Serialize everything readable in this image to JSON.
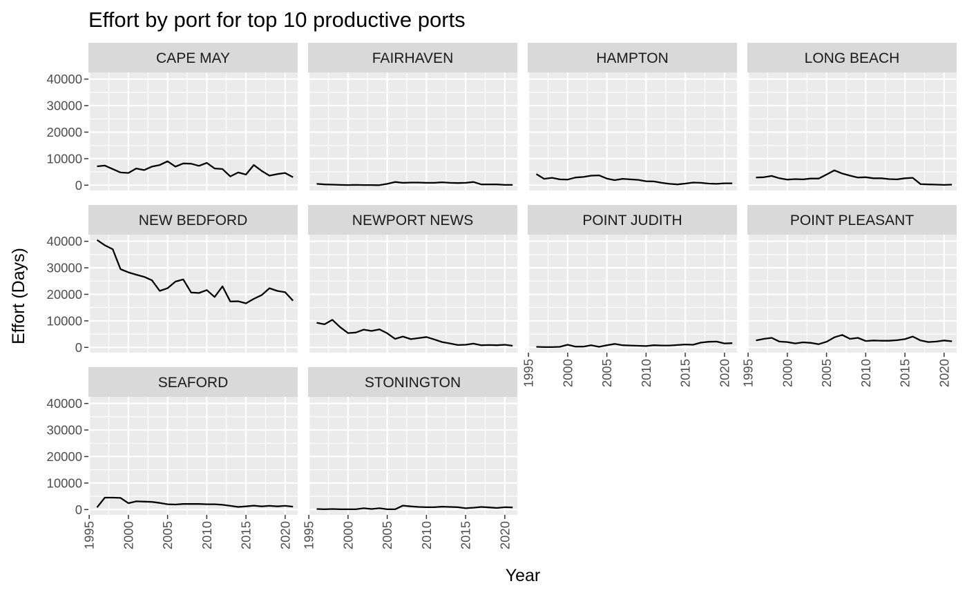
{
  "chart_data": {
    "type": "line",
    "title": "Effort by port for top 10 productive ports",
    "xlabel": "Year",
    "ylabel": "Effort (Days)",
    "facet_layout": "wrap 4 columns",
    "xlim": [
      1994.9,
      2021.6
    ],
    "ylim": [
      -2000,
      42500
    ],
    "x_ticks": [
      1995,
      2000,
      2005,
      2010,
      2015,
      2020
    ],
    "y_ticks": [
      0,
      10000,
      20000,
      30000,
      40000
    ],
    "x_tick_labels": [
      "1995",
      "2000",
      "2005",
      "2010",
      "2015",
      "2020"
    ],
    "y_tick_labels": [
      "0",
      "10000",
      "20000",
      "30000",
      "40000"
    ],
    "grid": true,
    "panel_background": "#ebebeb",
    "strip_background": "#d9d9d9",
    "line_color": "#000000",
    "x": [
      1996,
      1997,
      1998,
      1999,
      2000,
      2001,
      2002,
      2003,
      2004,
      2005,
      2006,
      2007,
      2008,
      2009,
      2010,
      2011,
      2012,
      2013,
      2014,
      2015,
      2016,
      2017,
      2018,
      2019,
      2020,
      2021
    ],
    "series": [
      {
        "name": "CAPE MAY",
        "values": [
          7100,
          7400,
          6100,
          4800,
          4600,
          6300,
          5700,
          7000,
          7600,
          9000,
          7000,
          8200,
          8100,
          7300,
          8400,
          6300,
          6100,
          3300,
          4800,
          4000,
          7600,
          5400,
          3600,
          4200,
          4600,
          3000
        ]
      },
      {
        "name": "FAIRHAVEN",
        "values": [
          500,
          300,
          200,
          100,
          50,
          100,
          50,
          50,
          0,
          500,
          1200,
          900,
          1000,
          1000,
          900,
          900,
          1100,
          900,
          800,
          900,
          1200,
          300,
          300,
          300,
          100,
          100
        ]
      },
      {
        "name": "HAMPTON",
        "values": [
          4200,
          2400,
          2800,
          2200,
          2100,
          2900,
          3100,
          3600,
          3700,
          2500,
          1900,
          2400,
          2200,
          2000,
          1500,
          1400,
          900,
          500,
          300,
          600,
          1000,
          900,
          600,
          500,
          700,
          700
        ]
      },
      {
        "name": "LONG BEACH",
        "values": [
          2900,
          3000,
          3500,
          2600,
          2100,
          2300,
          2200,
          2500,
          2500,
          4000,
          5600,
          4400,
          3600,
          2900,
          3000,
          2600,
          2600,
          2300,
          2200,
          2600,
          2800,
          400,
          300,
          200,
          100,
          200
        ]
      },
      {
        "name": "NEW BEDFORD",
        "values": [
          40500,
          38500,
          37000,
          29500,
          28300,
          27400,
          26600,
          25300,
          21300,
          22300,
          24800,
          25600,
          20700,
          20500,
          21600,
          19000,
          23000,
          17300,
          17400,
          16600,
          18300,
          19700,
          22300,
          21300,
          20800,
          17600
        ]
      },
      {
        "name": "NEWPORT NEWS",
        "values": [
          9300,
          8700,
          10400,
          7600,
          5400,
          5600,
          6700,
          6200,
          6800,
          5300,
          3200,
          4100,
          3100,
          3500,
          3900,
          3000,
          2000,
          1500,
          900,
          1000,
          1400,
          800,
          900,
          800,
          1000,
          600
        ]
      },
      {
        "name": "POINT JUDITH",
        "values": [
          200,
          100,
          100,
          200,
          1000,
          300,
          300,
          800,
          200,
          800,
          1300,
          800,
          700,
          600,
          500,
          800,
          700,
          700,
          900,
          1100,
          1000,
          1800,
          2100,
          2200,
          1500,
          1600
        ]
      },
      {
        "name": "POINT PLEASANT",
        "values": [
          2600,
          3200,
          3600,
          2200,
          2000,
          1500,
          1900,
          1700,
          1200,
          2100,
          3800,
          4700,
          3200,
          3600,
          2400,
          2600,
          2500,
          2500,
          2700,
          3100,
          4100,
          2600,
          2000,
          2200,
          2600,
          2300
        ]
      },
      {
        "name": "SEAFORD",
        "values": [
          800,
          4500,
          4500,
          4400,
          2400,
          3100,
          3000,
          2900,
          2500,
          2000,
          1900,
          2100,
          2100,
          2100,
          2000,
          2000,
          1800,
          1400,
          1000,
          1200,
          1500,
          1200,
          1400,
          1200,
          1400,
          1100
        ]
      },
      {
        "name": "STONINGTON",
        "values": [
          200,
          100,
          200,
          100,
          100,
          100,
          500,
          200,
          500,
          100,
          100,
          1500,
          1200,
          1000,
          900,
          900,
          1100,
          1000,
          900,
          500,
          700,
          1000,
          800,
          600,
          900,
          800
        ]
      }
    ]
  }
}
